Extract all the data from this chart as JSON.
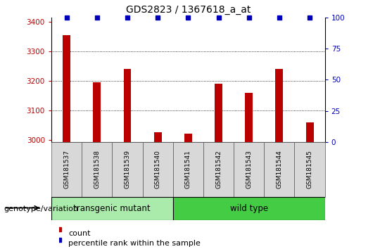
{
  "title": "GDS2823 / 1367618_a_at",
  "samples": [
    "GSM181537",
    "GSM181538",
    "GSM181539",
    "GSM181540",
    "GSM181541",
    "GSM181542",
    "GSM181543",
    "GSM181544",
    "GSM181545"
  ],
  "counts": [
    3355,
    3195,
    3240,
    3025,
    3020,
    3190,
    3160,
    3240,
    3060
  ],
  "percentile_ranks": [
    100,
    100,
    100,
    100,
    100,
    100,
    100,
    100,
    100
  ],
  "ylim_left": [
    2993,
    3415
  ],
  "ylim_right": [
    0,
    100
  ],
  "yticks_left": [
    3000,
    3100,
    3200,
    3300,
    3400
  ],
  "yticks_right": [
    0,
    25,
    50,
    75,
    100
  ],
  "bar_color": "#bb0000",
  "dot_color": "#0000bb",
  "grid_color": "#000000",
  "background_color": "#ffffff",
  "transgenic_label": "transgenic mutant",
  "wildtype_label": "wild type",
  "genotype_label": "genotype/variation",
  "legend_count_label": "count",
  "legend_percentile_label": "percentile rank within the sample",
  "transgenic_color": "#aaeaaa",
  "wildtype_color": "#44cc44",
  "group_box_color": "#d8d8d8",
  "title_fontsize": 10,
  "tick_fontsize": 7.5,
  "sample_fontsize": 6.5,
  "legend_fontsize": 8,
  "genotype_fontsize": 8,
  "group_fontsize": 8.5,
  "bar_width": 0.25,
  "n_transgenic": 4,
  "n_wildtype": 5
}
